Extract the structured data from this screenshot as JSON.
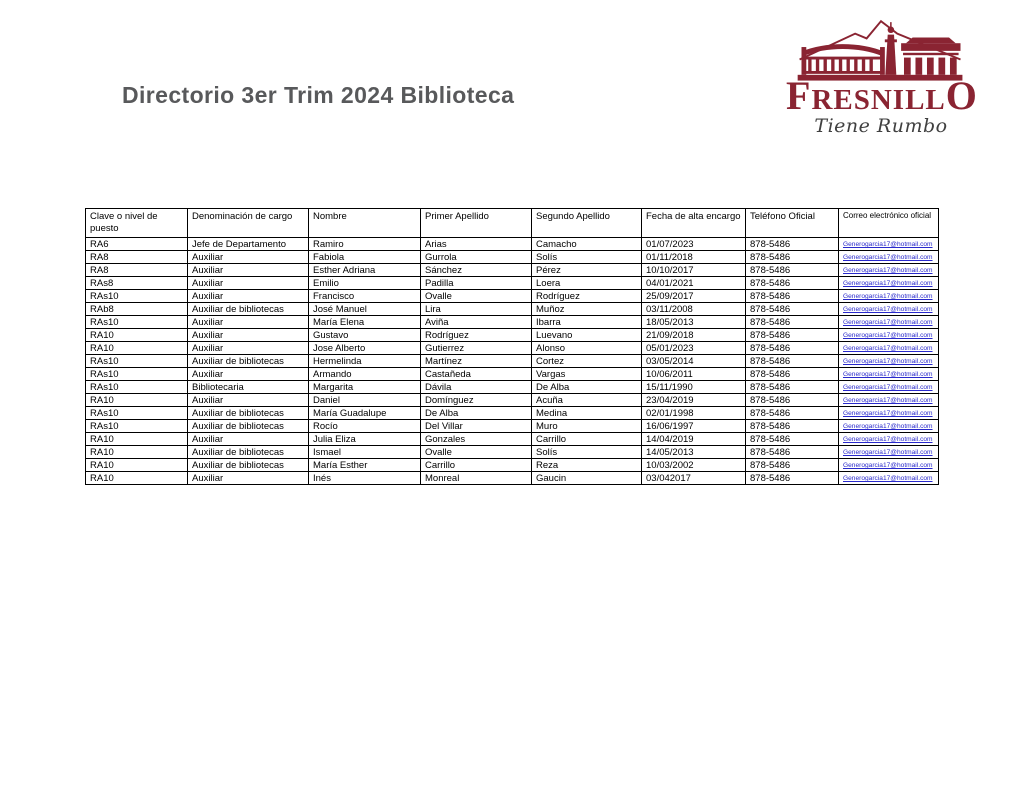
{
  "page": {
    "title": "Directorio 3er Trim 2024 Biblioteca"
  },
  "logo": {
    "brand_first": "F",
    "brand_mid": "RESNILL",
    "brand_last": "O",
    "tagline": "Tiene Rumbo",
    "brand_color": "#8a2432",
    "tagline_color": "#404040",
    "icon": "kiosco-monument-icon"
  },
  "colors": {
    "title_gray": "#58595b",
    "logo_maroon": "#8a2432",
    "link_blue": "#2929cc",
    "table_border": "#000000"
  },
  "table": {
    "columns": [
      "Clave o nivel de puesto",
      "Denominación de cargo",
      "Nombre",
      "Primer Apellido",
      "Segundo Apellido",
      "Fecha de alta encargo",
      "Teléfono Oficial",
      "Correo electrónico oficial"
    ],
    "row_keys": [
      "clave",
      "cargo",
      "nombre",
      "primer_apellido",
      "segundo_apellido",
      "fecha",
      "telefono",
      "correo"
    ],
    "rows": [
      {
        "clave": "RA6",
        "cargo": "Jefe de Departamento",
        "nombre": "Ramiro",
        "primer_apellido": "Arias",
        "segundo_apellido": "Camacho",
        "fecha": "01/07/2023",
        "telefono": "878-5486",
        "correo": "Generogarcia17@hotmail.com"
      },
      {
        "clave": "RA8",
        "cargo": "Auxiliar",
        "nombre": "Fabiola",
        "primer_apellido": "Gurrola",
        "segundo_apellido": "Solís",
        "fecha": "01/11/2018",
        "telefono": "878-5486",
        "correo": "Generogarcia17@hotmail.com"
      },
      {
        "clave": "RA8",
        "cargo": "Auxiliar",
        "nombre": "Esther Adriana",
        "primer_apellido": "Sánchez",
        "segundo_apellido": "Pérez",
        "fecha": "10/10/2017",
        "telefono": "878-5486",
        "correo": "Generogarcia17@hotmail.com"
      },
      {
        "clave": "RAs8",
        "cargo": "Auxiliar",
        "nombre": "Emilio",
        "primer_apellido": "Padilla",
        "segundo_apellido": "Loera",
        "fecha": "04/01/2021",
        "telefono": "878-5486",
        "correo": "Generogarcia17@hotmail.com"
      },
      {
        "clave": "RAs10",
        "cargo": "Auxiliar",
        "nombre": "Francisco",
        "primer_apellido": "Ovalle",
        "segundo_apellido": "Rodríguez",
        "fecha": "25/09/2017",
        "telefono": "878-5486",
        "correo": "Generogarcia17@hotmail.com"
      },
      {
        "clave": "RAb8",
        "cargo": "Auxiliar de bibliotecas",
        "nombre": "José Manuel",
        "primer_apellido": "Lira",
        "segundo_apellido": "Muñoz",
        "fecha": "03/11/2008",
        "telefono": "878-5486",
        "correo": "Generogarcia17@hotmail.com"
      },
      {
        "clave": "RAs10",
        "cargo": "Auxiliar",
        "nombre": "María Elena",
        "primer_apellido": "Aviña",
        "segundo_apellido": "Ibarra",
        "fecha": "18/05/2013",
        "telefono": "878-5486",
        "correo": "Generogarcia17@hotmail.com"
      },
      {
        "clave": "RA10",
        "cargo": "Auxiliar",
        "nombre": "Gustavo",
        "primer_apellido": "Rodríguez",
        "segundo_apellido": "Luevano",
        "fecha": "21/09/2018",
        "telefono": "878-5486",
        "correo": "Generogarcia17@hotmail.com"
      },
      {
        "clave": "RA10",
        "cargo": "Auxiliar",
        "nombre": "Jose Alberto",
        "primer_apellido": "Gutierrez",
        "segundo_apellido": "Alonso",
        "fecha": "05/01/2023",
        "telefono": "878-5486",
        "correo": "Generogarcia17@hotmail.com"
      },
      {
        "clave": "RAs10",
        "cargo": "Auxiliar de bibliotecas",
        "nombre": "Hermelinda",
        "primer_apellido": "Martínez",
        "segundo_apellido": "Cortez",
        "fecha": "03/05/2014",
        "telefono": "878-5486",
        "correo": "Generogarcia17@hotmail.com"
      },
      {
        "clave": "RAs10",
        "cargo": "Auxiliar",
        "nombre": "Armando",
        "primer_apellido": "Castañeda",
        "segundo_apellido": "Vargas",
        "fecha": "10/06/2011",
        "telefono": "878-5486",
        "correo": "Generogarcia17@hotmail.com"
      },
      {
        "clave": "RAs10",
        "cargo": "Bibliotecaria",
        "nombre": "Margarita",
        "primer_apellido": "Dávila",
        "segundo_apellido": "De Alba",
        "fecha": "15/11/1990",
        "telefono": "878-5486",
        "correo": "Generogarcia17@hotmail.com"
      },
      {
        "clave": "RA10",
        "cargo": "Auxiliar",
        "nombre": "Daniel",
        "primer_apellido": "Domínguez",
        "segundo_apellido": "Acuña",
        "fecha": "23/04/2019",
        "telefono": "878-5486",
        "correo": "Generogarcia17@hotmail.com"
      },
      {
        "clave": "RAs10",
        "cargo": "Auxiliar de bibliotecas",
        "nombre": "María Guadalupe",
        "primer_apellido": "De Alba",
        "segundo_apellido": "Medina",
        "fecha": "02/01/1998",
        "telefono": "878-5486",
        "correo": "Generogarcia17@hotmail.com"
      },
      {
        "clave": "RAs10",
        "cargo": "Auxiliar de bibliotecas",
        "nombre": "Rocío",
        "primer_apellido": "Del Villar",
        "segundo_apellido": "Muro",
        "fecha": "16/06/1997",
        "telefono": "878-5486",
        "correo": "Generogarcia17@hotmail.com"
      },
      {
        "clave": "RA10",
        "cargo": "Auxiliar",
        "nombre": "Julia Eliza",
        "primer_apellido": "Gonzales",
        "segundo_apellido": "Carrillo",
        "fecha": "14/04/2019",
        "telefono": "878-5486",
        "correo": "Generogarcia17@hotmail.com"
      },
      {
        "clave": "RA10",
        "cargo": "Auxiliar de bibliotecas",
        "nombre": "Ismael",
        "primer_apellido": "Ovalle",
        "segundo_apellido": "Solís",
        "fecha": "14/05/2013",
        "telefono": "878-5486",
        "correo": "Generogarcia17@hotmail.com"
      },
      {
        "clave": "RA10",
        "cargo": "Auxiliar de bibliotecas",
        "nombre": "María Esther",
        "primer_apellido": "Carrillo",
        "segundo_apellido": "Reza",
        "fecha": "10/03/2002",
        "telefono": "878-5486",
        "correo": "Generogarcia17@hotmail.com"
      },
      {
        "clave": "RA10",
        "cargo": "Auxiliar",
        "nombre": "Inés",
        "primer_apellido": "Monreal",
        "segundo_apellido": "Gaucin",
        "fecha": "03/042017",
        "telefono": "878-5486",
        "correo": "Generogarcia17@hotmail.com"
      }
    ]
  }
}
